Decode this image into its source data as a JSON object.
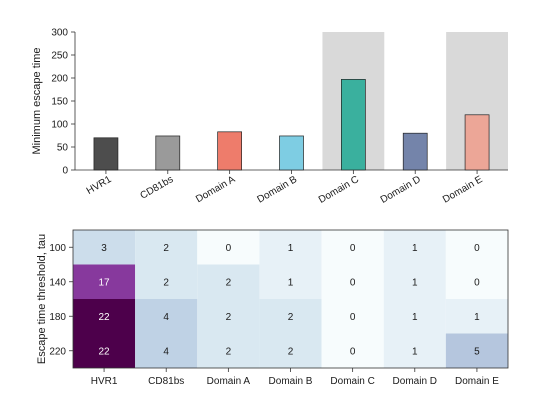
{
  "chart_data": [
    {
      "type": "bar",
      "categories": [
        "HVR1",
        "CD81bs",
        "Domain A",
        "Domain B",
        "Domain C",
        "Domain D",
        "Domain E"
      ],
      "values": [
        70,
        74,
        83,
        74,
        197,
        80,
        120
      ],
      "colors": [
        "#4d4d4d",
        "#9a9a9a",
        "#ee7c6b",
        "#7ecde3",
        "#3ab09e",
        "#7484aa",
        "#eca697"
      ],
      "highlighted_categories": [
        "Domain C",
        "Domain E"
      ],
      "highlight_color": "#d9d9d9",
      "title": "",
      "xlabel": "",
      "ylabel": "Minimum escape time",
      "ylim": [
        0,
        300
      ],
      "yticks": [
        0,
        50,
        100,
        150,
        200,
        250,
        300
      ],
      "grid": false
    },
    {
      "type": "heatmap",
      "x_categories": [
        "HVR1",
        "CD81bs",
        "Domain A",
        "Domain B",
        "Domain C",
        "Domain D",
        "Domain E"
      ],
      "y_categories": [
        "100",
        "140",
        "180",
        "220"
      ],
      "values": [
        [
          3,
          2,
          0,
          1,
          0,
          1,
          0
        ],
        [
          17,
          2,
          2,
          1,
          0,
          1,
          0
        ],
        [
          22,
          4,
          2,
          2,
          0,
          1,
          1
        ],
        [
          22,
          4,
          2,
          2,
          0,
          1,
          5
        ]
      ],
      "title": "",
      "xlabel": "",
      "ylabel": "Escape time threshold, tau",
      "grid": false
    }
  ]
}
